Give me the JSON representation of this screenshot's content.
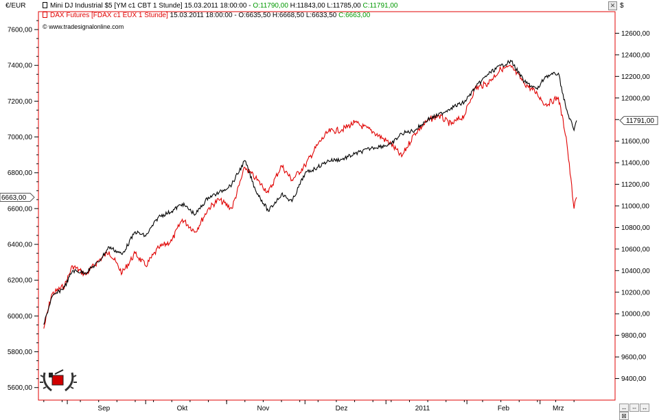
{
  "header": {
    "left_unit": "€/EUR",
    "right_unit": "$",
    "close_glyph": "✕",
    "series1_label": "Mini DJ Industrial $5 [YM c1 CBT  1 Stunde] 15.03.2011 18:00:00 - ",
    "series1_open": "O:11790,00",
    "series1_hlc": " H:11843,00 L:11785,00 ",
    "series1_close": "C:11791,00",
    "series2_label": "DAX Futures [FDAX c1 EUX  1 Stunde] ",
    "series2_rest": "15.03.2011 18:00:00 - O:6635,50 H:6668,50 L:6633,50 ",
    "series2_close": "C:6663,00",
    "copyright": "© www.tradesignalonline.com"
  },
  "nav_buttons": [
    "↔",
    "⇔",
    "↔",
    "⊠"
  ],
  "colors": {
    "dax": "#e00000",
    "dow": "#000000",
    "frame": "#e00000"
  },
  "chart_data": {
    "type": "line",
    "x_tick_labels": [
      "Sep",
      "Okt",
      "Nov",
      "Dez",
      "2011",
      "Feb",
      "Mrz"
    ],
    "left_axis": {
      "label": "€/EUR",
      "min": 5530,
      "max": 7700,
      "ticks": [
        5600,
        5800,
        6000,
        6200,
        6400,
        6600,
        6800,
        7000,
        7200,
        7400,
        7600
      ],
      "tick_labels": [
        "5600,00",
        "5800,00",
        "6000,00",
        "6200,00",
        "6400,00",
        "6600,00",
        "6800,00",
        "7000,00",
        "7200,00",
        "7400,00",
        "7600,00"
      ]
    },
    "right_axis": {
      "label": "$",
      "min": 9200,
      "max": 12800,
      "ticks": [
        9400,
        9600,
        9800,
        10000,
        10200,
        10400,
        10600,
        10800,
        11000,
        11200,
        11400,
        11600,
        11800,
        12000,
        12200,
        12400,
        12600
      ],
      "tick_labels": [
        "9400,00",
        "9600,00",
        "9800,00",
        "10000,00",
        "10200,00",
        "10400,00",
        "10600,00",
        "10800,00",
        "11000,00",
        "11200,00",
        "11400,00",
        "11600,00",
        "11800,00",
        "12000,00",
        "12200,00",
        "12400,00",
        "12600,00"
      ]
    },
    "last_left": 6663,
    "last_left_label": "6663,00",
    "last_right": 11791,
    "last_right_label": "11791,00",
    "series": [
      {
        "name": "DAX Futures [FDAX c1 EUX  1 Stunde]",
        "axis": "left",
        "color": "#e00000",
        "dates": [
          "2010-08-23",
          "2010-08-26",
          "2010-08-31",
          "2010-09-03",
          "2010-09-08",
          "2010-09-13",
          "2010-09-17",
          "2010-09-22",
          "2010-09-27",
          "2010-10-01",
          "2010-10-06",
          "2010-10-11",
          "2010-10-15",
          "2010-10-20",
          "2010-10-25",
          "2010-10-29",
          "2010-11-03",
          "2010-11-08",
          "2010-11-12",
          "2010-11-17",
          "2010-11-22",
          "2010-11-26",
          "2010-12-01",
          "2010-12-06",
          "2010-12-10",
          "2010-12-15",
          "2010-12-20",
          "2010-12-27",
          "2011-01-03",
          "2011-01-07",
          "2011-01-12",
          "2011-01-17",
          "2011-01-21",
          "2011-01-26",
          "2011-01-31",
          "2011-02-04",
          "2011-02-09",
          "2011-02-14",
          "2011-02-18",
          "2011-02-23",
          "2011-02-28",
          "2011-03-03",
          "2011-03-08",
          "2011-03-11",
          "2011-03-14",
          "2011-03-15"
        ],
        "values": [
          5930,
          6120,
          6170,
          6280,
          6230,
          6310,
          6360,
          6240,
          6350,
          6280,
          6380,
          6420,
          6540,
          6470,
          6600,
          6650,
          6600,
          6830,
          6770,
          6690,
          6840,
          6760,
          6840,
          6960,
          7030,
          7040,
          7080,
          7030,
          6960,
          6890,
          7020,
          7090,
          7120,
          7070,
          7120,
          7270,
          7300,
          7380,
          7390,
          7300,
          7240,
          7180,
          7220,
          7000,
          6600,
          6663
        ]
      },
      {
        "name": "Mini DJ Industrial $5 [YM c1 CBT  1 Stunde]",
        "axis": "right",
        "color": "#000000",
        "dates": [
          "2010-08-23",
          "2010-08-26",
          "2010-08-31",
          "2010-09-03",
          "2010-09-08",
          "2010-09-13",
          "2010-09-17",
          "2010-09-22",
          "2010-09-27",
          "2010-10-01",
          "2010-10-06",
          "2010-10-11",
          "2010-10-15",
          "2010-10-20",
          "2010-10-25",
          "2010-10-29",
          "2010-11-03",
          "2010-11-08",
          "2010-11-12",
          "2010-11-17",
          "2010-11-22",
          "2010-11-26",
          "2010-12-01",
          "2010-12-06",
          "2010-12-10",
          "2010-12-15",
          "2010-12-20",
          "2010-12-27",
          "2011-01-03",
          "2011-01-07",
          "2011-01-12",
          "2011-01-17",
          "2011-01-21",
          "2011-01-26",
          "2011-01-31",
          "2011-02-04",
          "2011-02-09",
          "2011-02-14",
          "2011-02-18",
          "2011-02-23",
          "2011-02-28",
          "2011-03-03",
          "2011-03-08",
          "2011-03-11",
          "2011-03-14",
          "2011-03-15"
        ],
        "values": [
          9900,
          10150,
          10250,
          10400,
          10380,
          10480,
          10620,
          10550,
          10760,
          10720,
          10900,
          10950,
          11020,
          10920,
          11080,
          11120,
          11200,
          11420,
          11150,
          10950,
          11110,
          11040,
          11300,
          11360,
          11420,
          11430,
          11480,
          11540,
          11570,
          11670,
          11700,
          11800,
          11840,
          11910,
          11960,
          12090,
          12220,
          12300,
          12340,
          12150,
          12080,
          12200,
          12230,
          11900,
          11700,
          11791
        ]
      }
    ]
  }
}
